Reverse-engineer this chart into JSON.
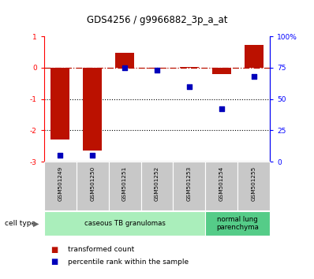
{
  "title": "GDS4256 / g9966882_3p_a_at",
  "categories": [
    "GSM501249",
    "GSM501250",
    "GSM501251",
    "GSM501252",
    "GSM501253",
    "GSM501254",
    "GSM501255"
  ],
  "transformed_counts": [
    -2.3,
    -2.65,
    0.48,
    -0.02,
    0.02,
    -0.2,
    0.72
  ],
  "percentile_ranks": [
    5,
    5,
    75,
    73,
    60,
    42,
    68
  ],
  "bar_color": "#bb1100",
  "dot_color": "#0000bb",
  "ylim_left": [
    -3,
    1
  ],
  "ylim_right": [
    0,
    100
  ],
  "yticks_left": [
    -3,
    -2,
    -1,
    0,
    1
  ],
  "ytick_labels_left": [
    "-3",
    "-2",
    "-1",
    "0",
    "1"
  ],
  "yticks_right": [
    0,
    25,
    50,
    75,
    100
  ],
  "ytick_labels_right": [
    "0",
    "25",
    "50",
    "75",
    "100%"
  ],
  "dotted_lines": [
    -1,
    -2
  ],
  "cell_type_groups": [
    {
      "label": "caseous TB granulomas",
      "start": 0,
      "end": 4,
      "color": "#aaeebb"
    },
    {
      "label": "normal lung\nparenchyma",
      "start": 5,
      "end": 6,
      "color": "#55cc88"
    }
  ],
  "cell_type_label": "cell type",
  "legend_entries": [
    {
      "label": "transformed count",
      "color": "#bb1100"
    },
    {
      "label": "percentile rank within the sample",
      "color": "#0000bb"
    }
  ],
  "tick_area_color": "#c8c8c8",
  "n_bars": 7
}
